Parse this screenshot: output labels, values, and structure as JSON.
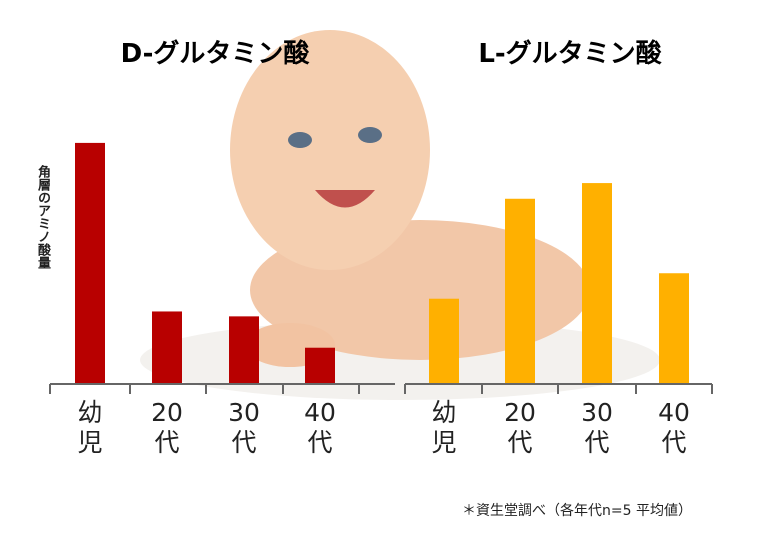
{
  "chart_data": [
    {
      "type": "bar",
      "title": "D-グルタミン酸",
      "ylabel": "角層のアミノ酸量",
      "categories": [
        "幼児",
        "20代",
        "30代",
        "40代"
      ],
      "values": [
        245,
        73,
        68,
        36
      ],
      "color": "#b80000",
      "ylim": [
        0,
        250
      ]
    },
    {
      "type": "bar",
      "title": "L-グルタミン酸",
      "categories": [
        "幼児",
        "20代",
        "30代",
        "40代"
      ],
      "values": [
        86,
        188,
        204,
        112
      ],
      "color": "#ffb000",
      "ylim": [
        0,
        250
      ]
    }
  ],
  "footnote": "＊資生堂調べ（各年代n=5 平均値）"
}
